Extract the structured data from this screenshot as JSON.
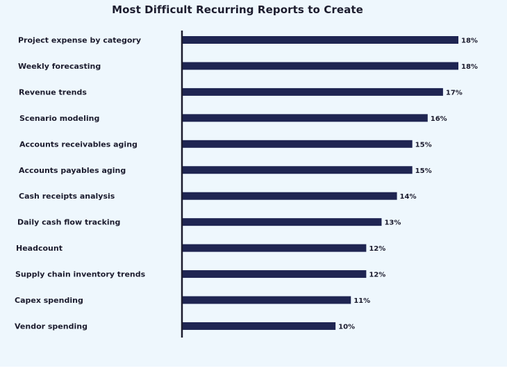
{
  "chart_data": {
    "type": "bar",
    "orientation": "horizontal",
    "title": "Most Difficult Recurring Reports to Create",
    "categories": [
      "Project expense by category",
      "Weekly forecasting",
      "Revenue trends",
      "Scenario modeling",
      "Accounts receivables aging",
      "Accounts payables aging",
      "Cash receipts analysis",
      "Daily cash flow tracking",
      "Headcount",
      "Supply chain inventory trends",
      "Capex spending",
      "Vendor spending"
    ],
    "values": [
      18,
      18,
      17,
      16,
      15,
      15,
      14,
      13,
      12,
      12,
      11,
      10
    ],
    "value_labels": [
      "18%",
      "18%",
      "17%",
      "16%",
      "15%",
      "15%",
      "14%",
      "13%",
      "12%",
      "12%",
      "11%",
      "10%"
    ],
    "xlim": [
      0,
      18
    ],
    "grid": false,
    "legend": "none",
    "bar_color": "#1f2552",
    "axis_color": "#1c1c2e"
  }
}
